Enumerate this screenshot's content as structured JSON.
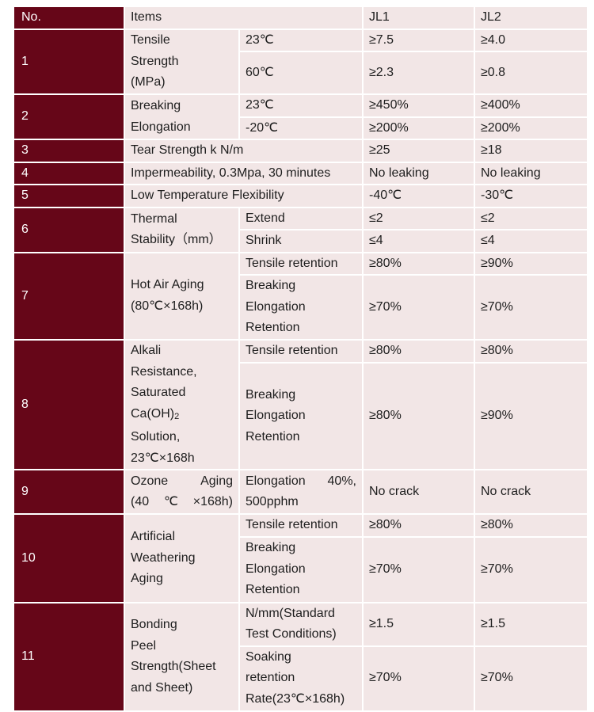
{
  "header": {
    "no": "No.",
    "items": "Items",
    "jl1": "JL1",
    "jl2": "JL2"
  },
  "r1": {
    "no": "1",
    "item": [
      "Tensile",
      "Strength",
      "(MPa)"
    ],
    "cond": [
      "23℃",
      "60℃"
    ],
    "jl1": [
      "≥7.5",
      "≥2.3"
    ],
    "jl2": [
      "≥4.0",
      "≥0.8"
    ]
  },
  "r2": {
    "no": "2",
    "item": [
      "Breaking",
      "Elongation"
    ],
    "cond": [
      "23℃",
      "-20℃"
    ],
    "jl1": [
      "≥450%",
      "≥200%"
    ],
    "jl2": [
      "≥400%",
      "≥200%"
    ]
  },
  "r3": {
    "no": "3",
    "item": "Tear Strength k N/m",
    "jl1": "≥25",
    "jl2": "≥18"
  },
  "r4": {
    "no": "4",
    "item": "Impermeability, 0.3Mpa, 30 minutes",
    "jl1": "No leaking",
    "jl2": "No leaking"
  },
  "r5": {
    "no": "5",
    "item": "Low Temperature Flexibility",
    "jl1": "-40℃",
    "jl2": "-30℃"
  },
  "r6": {
    "no": "6",
    "item": [
      "Thermal",
      "Stability（mm）"
    ],
    "cond": [
      "Extend",
      "Shrink"
    ],
    "jl1": [
      "≤2",
      "≤4"
    ],
    "jl2": [
      "≤2",
      "≤4"
    ]
  },
  "r7": {
    "no": "7",
    "item": [
      "Hot Air Aging",
      "(80℃×168h)"
    ],
    "cond": [
      "Tensile retention",
      [
        "Breaking",
        "Elongation",
        "Retention"
      ]
    ],
    "jl1": [
      "≥80%",
      "≥70%"
    ],
    "jl2": [
      "≥90%",
      "≥70%"
    ]
  },
  "r8": {
    "no": "8",
    "item": [
      "Alkali",
      "Resistance,",
      "Saturated",
      "Ca(OH)",
      "2",
      "Solution,",
      "23℃×168h"
    ],
    "cond": [
      "Tensile retention",
      [
        "Breaking",
        "Elongation",
        "Retention"
      ]
    ],
    "jl1": [
      "≥80%",
      "≥80%"
    ],
    "jl2": [
      "≥80%",
      "≥90%"
    ]
  },
  "r9": {
    "no": "9",
    "item": [
      "Ozone Aging",
      "(40℃×168h)"
    ],
    "cond": [
      "Elongation 40%,",
      "500pphm"
    ],
    "jl1": "No crack",
    "jl2": "No crack"
  },
  "r10": {
    "no": "10",
    "item": [
      "Artificial",
      "Weathering",
      "Aging"
    ],
    "cond": [
      "Tensile retention",
      [
        "Breaking",
        "Elongation",
        "Retention"
      ]
    ],
    "jl1": [
      "≥80%",
      "≥70%"
    ],
    "jl2": [
      "≥80%",
      "≥70%"
    ]
  },
  "r11": {
    "no": "11",
    "item": [
      "Bonding",
      "Peel",
      "Strength(Sheet",
      "and Sheet)"
    ],
    "cond": [
      [
        "N/mm(Standard",
        "Test Conditions)"
      ],
      [
        "Soaking",
        "retention",
        "Rate(23℃×168h)"
      ]
    ],
    "jl1": [
      "≥1.5",
      "≥70%"
    ],
    "jl2": [
      "≥1.5",
      "≥70%"
    ]
  },
  "colors": {
    "maroon": "#660618",
    "cell": "#f2e6e6"
  }
}
